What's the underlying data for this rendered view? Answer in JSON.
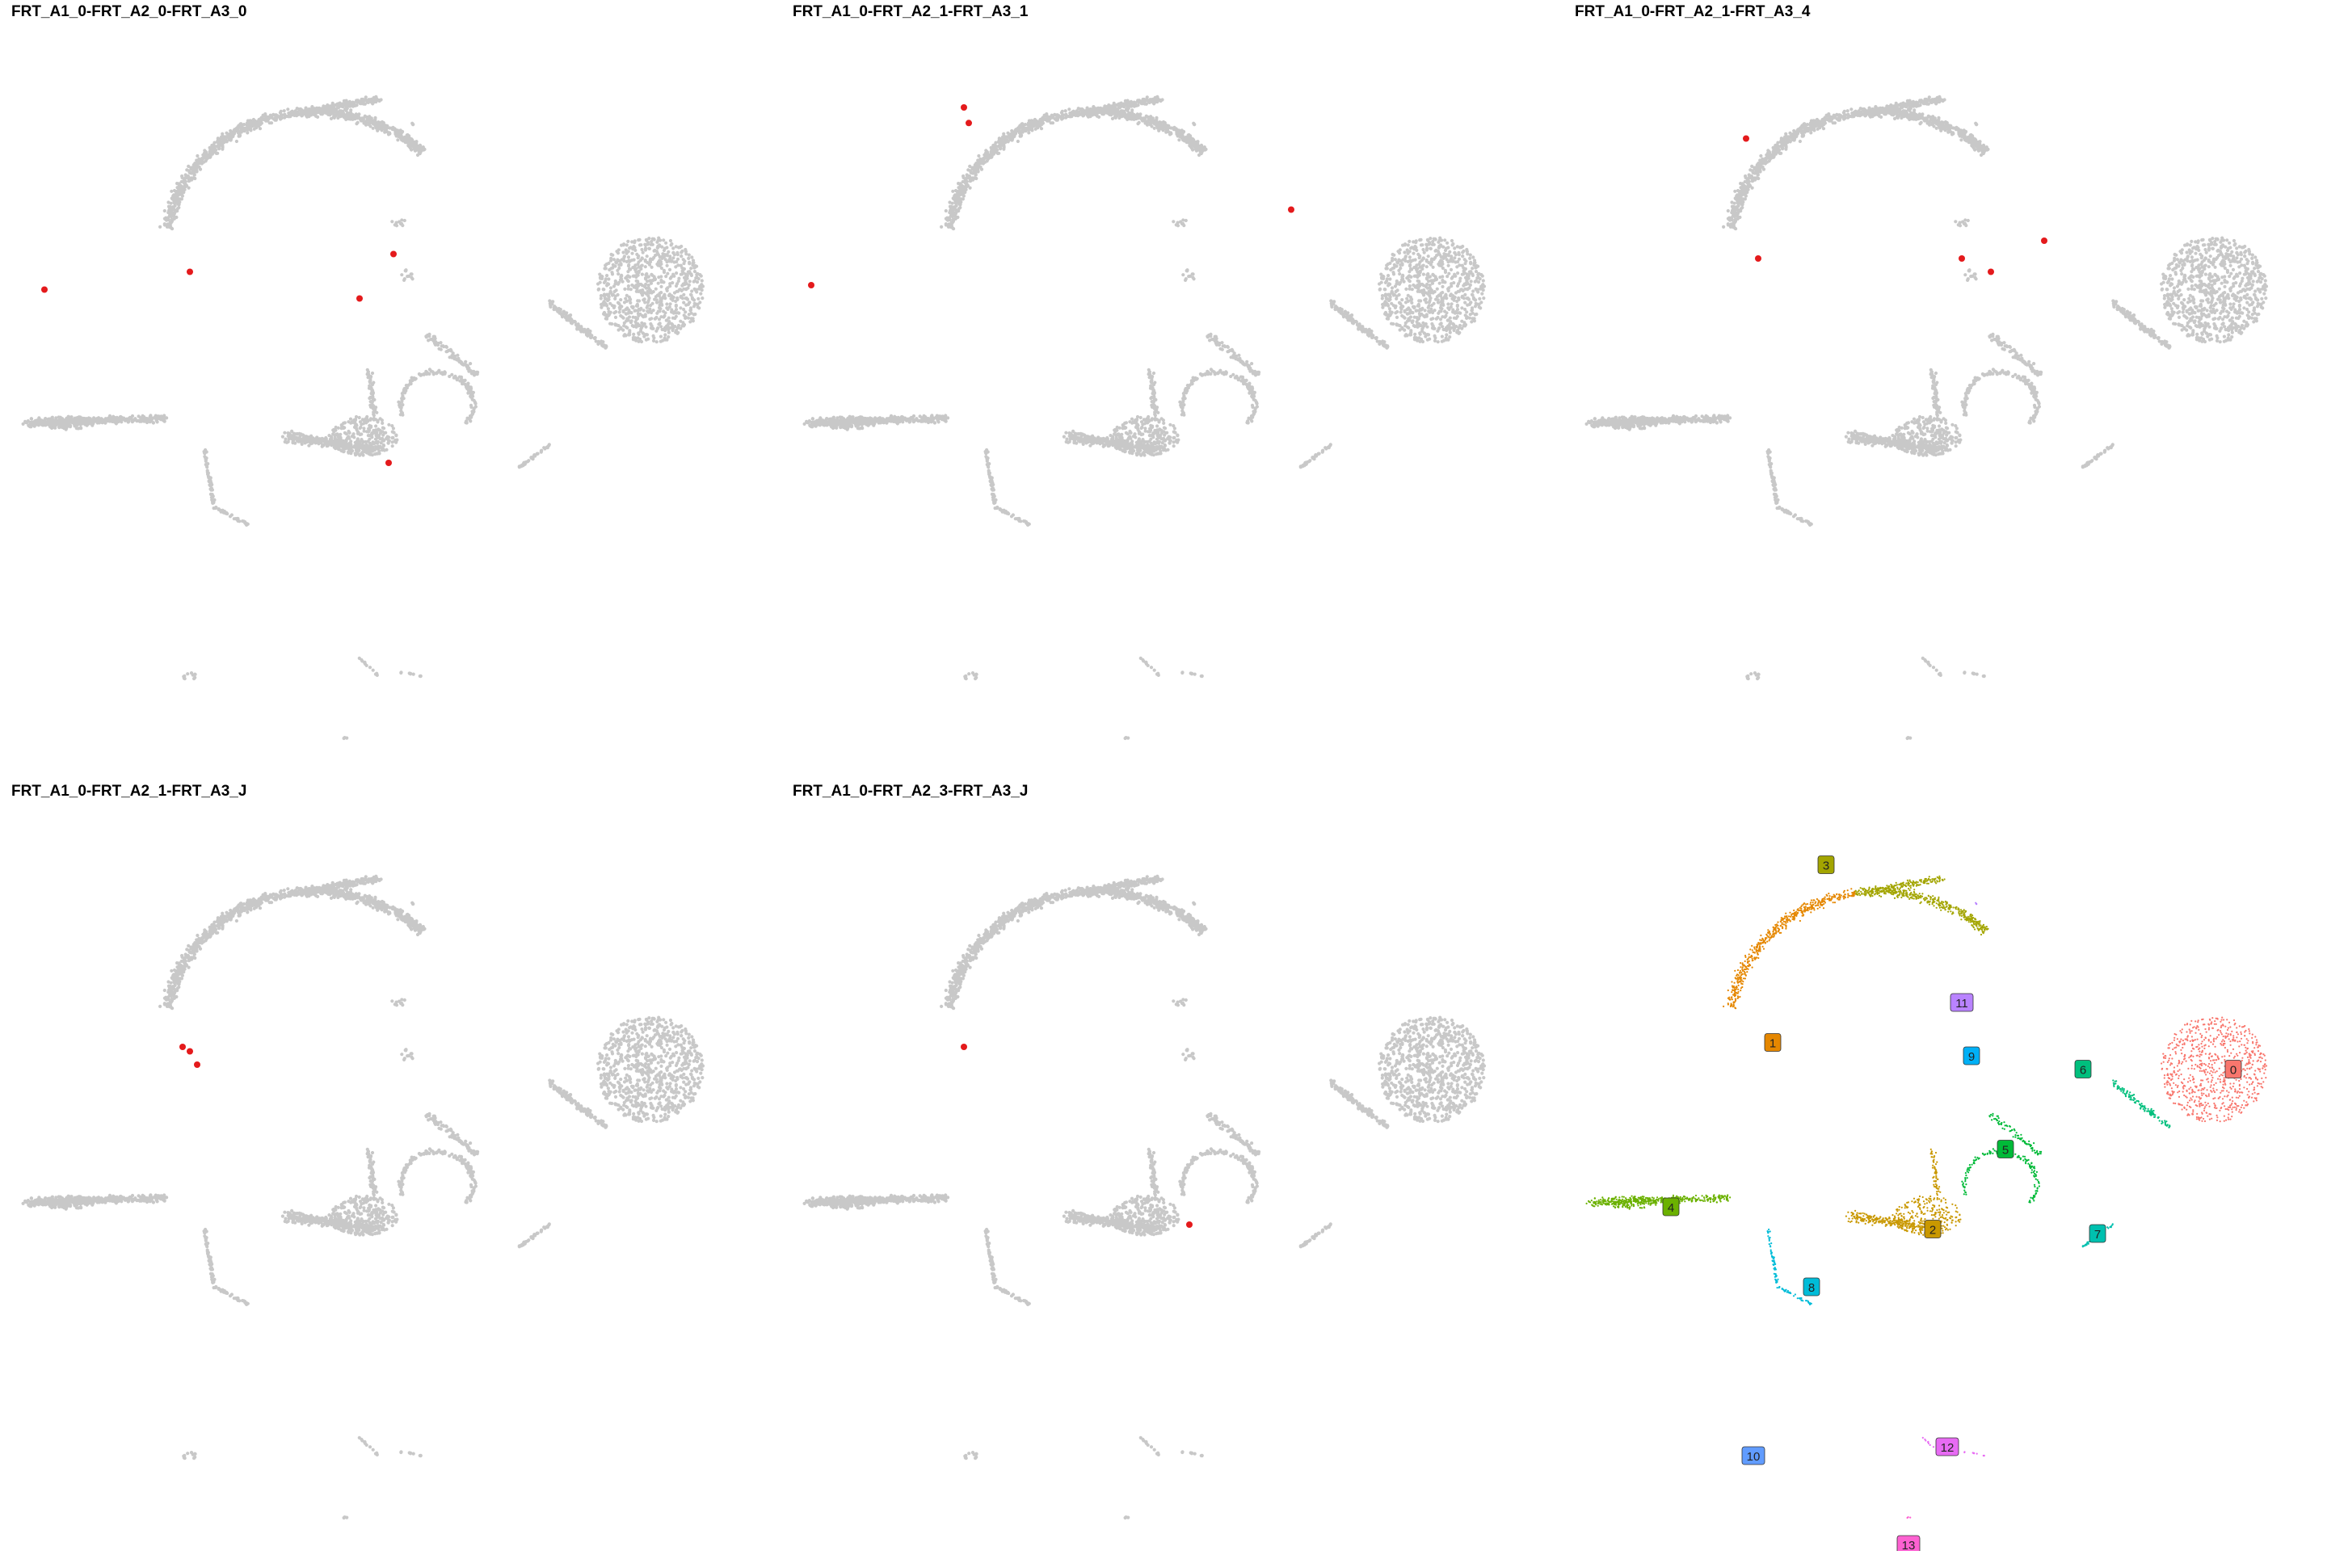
{
  "colors": {
    "background_cells": "#c8c8c8",
    "highlight_cells": "#e41a1c",
    "cluster_palette": {
      "0": "#f8766d",
      "1": "#e58700",
      "2": "#c99800",
      "3": "#a3a500",
      "4": "#6bb100",
      "5": "#00ba38",
      "6": "#00bf7d",
      "7": "#00c0af",
      "8": "#00bcd8",
      "9": "#00b0f6",
      "10": "#619cff",
      "11": "#b983ff",
      "12": "#e76bf3",
      "13": "#fd61d1"
    }
  },
  "chart_data": [
    {
      "type": "scatter",
      "title": "FRT_A1_0-FRT_A2_0-FRT_A3_0",
      "background": "umap_all_cells",
      "highlight_points": [
        [
          -2.0,
          1.3
        ],
        [
          1.0,
          1.7
        ],
        [
          5.2,
          2.1
        ],
        [
          4.5,
          1.1
        ],
        [
          5.1,
          -2.6
        ]
      ]
    },
    {
      "type": "scatter",
      "title": "FRT_A1_0-FRT_A2_1-FRT_A3_1",
      "background": "umap_all_cells",
      "highlight_points": [
        [
          0.85,
          5.4
        ],
        [
          0.95,
          5.05
        ],
        [
          -2.3,
          1.4
        ],
        [
          7.6,
          3.1
        ]
      ]
    },
    {
      "type": "scatter",
      "title": "FRT_A1_0-FRT_A2_1-FRT_A3_4",
      "background": "umap_all_cells",
      "highlight_points": [
        [
          0.85,
          4.7
        ],
        [
          1.1,
          2.0
        ],
        [
          5.3,
          2.0
        ],
        [
          5.9,
          1.7
        ],
        [
          7.0,
          2.4
        ]
      ]
    },
    {
      "type": "scatter",
      "title": "FRT_A1_0-FRT_A2_1-FRT_A3_J",
      "background": "umap_all_cells",
      "highlight_points": [
        [
          0.85,
          1.8
        ],
        [
          1.0,
          1.7
        ],
        [
          1.15,
          1.4
        ]
      ]
    },
    {
      "type": "scatter",
      "title": "FRT_A1_0-FRT_A2_3-FRT_A3_J",
      "background": "umap_all_cells",
      "highlight_points": [
        [
          0.85,
          1.8
        ],
        [
          5.5,
          -2.2
        ]
      ]
    },
    {
      "type": "scatter",
      "title": "",
      "background": "umap_clusters",
      "cluster_labels": [
        {
          "label": "0",
          "x": 10.9,
          "y": 1.3
        },
        {
          "label": "1",
          "x": 1.4,
          "y": 1.9
        },
        {
          "label": "2",
          "x": 4.7,
          "y": -2.3
        },
        {
          "label": "3",
          "x": 2.5,
          "y": 5.9
        },
        {
          "label": "4",
          "x": -0.7,
          "y": -1.8
        },
        {
          "label": "5",
          "x": 6.2,
          "y": -0.5
        },
        {
          "label": "6",
          "x": 7.8,
          "y": 1.3
        },
        {
          "label": "7",
          "x": 8.1,
          "y": -2.4
        },
        {
          "label": "8",
          "x": 2.2,
          "y": -3.6
        },
        {
          "label": "9",
          "x": 5.5,
          "y": 1.6
        },
        {
          "label": "10",
          "x": 1.0,
          "y": -7.4
        },
        {
          "label": "11",
          "x": 5.3,
          "y": 2.8
        },
        {
          "label": "12",
          "x": 5.0,
          "y": -7.2
        },
        {
          "label": "13",
          "x": 4.2,
          "y": -9.4
        }
      ]
    }
  ]
}
